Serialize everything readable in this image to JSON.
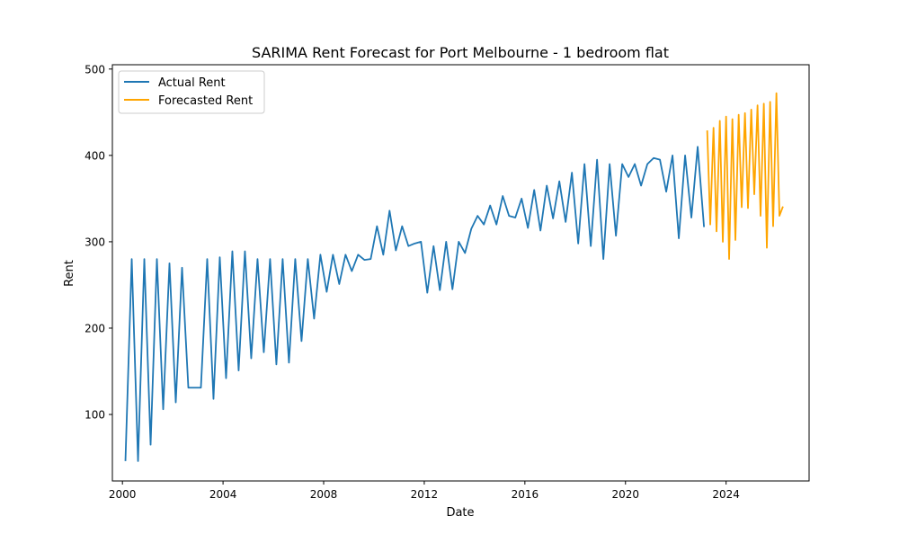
{
  "chart_data": {
    "type": "line",
    "title": "SARIMA Rent Forecast for Port Melbourne - 1 bedroom flat",
    "xlabel": "Date",
    "ylabel": "Rent",
    "xlim": [
      1999.6,
      2027.3
    ],
    "ylim": [
      23,
      505
    ],
    "x_ticks": [
      2000,
      2004,
      2008,
      2012,
      2016,
      2020,
      2024
    ],
    "y_ticks": [
      100,
      200,
      300,
      400,
      500
    ],
    "grid": false,
    "legend_position": "top-left",
    "series": [
      {
        "name": "Actual Rent",
        "color": "#1f77b4",
        "x": [
          2000.12,
          2000.37,
          2000.62,
          2000.87,
          2001.12,
          2001.37,
          2001.62,
          2001.87,
          2002.12,
          2002.37,
          2002.62,
          2002.87,
          2003.12,
          2003.37,
          2003.62,
          2003.87,
          2004.12,
          2004.37,
          2004.62,
          2004.87,
          2005.12,
          2005.37,
          2005.62,
          2005.87,
          2006.12,
          2006.37,
          2006.62,
          2006.87,
          2007.12,
          2007.37,
          2007.62,
          2007.87,
          2008.12,
          2008.37,
          2008.62,
          2008.87,
          2009.12,
          2009.37,
          2009.62,
          2009.87,
          2010.12,
          2010.37,
          2010.62,
          2010.87,
          2011.12,
          2011.37,
          2011.62,
          2011.87,
          2012.12,
          2012.37,
          2012.62,
          2012.87,
          2013.12,
          2013.37,
          2013.62,
          2013.87,
          2014.12,
          2014.37,
          2014.62,
          2014.87,
          2015.12,
          2015.37,
          2015.62,
          2015.87,
          2016.12,
          2016.37,
          2016.62,
          2016.87,
          2017.12,
          2017.37,
          2017.62,
          2017.87,
          2018.12,
          2018.37,
          2018.62,
          2018.87,
          2019.12,
          2019.37,
          2019.62,
          2019.87,
          2020.12,
          2020.37,
          2020.62,
          2020.87,
          2021.12,
          2021.37,
          2021.62,
          2021.87,
          2022.12,
          2022.37,
          2022.62,
          2022.87,
          2023.12
        ],
        "values": [
          47,
          280,
          46,
          280,
          65,
          280,
          106,
          275,
          114,
          270,
          131,
          131,
          131,
          280,
          118,
          282,
          142,
          289,
          151,
          289,
          165,
          280,
          172,
          280,
          158,
          280,
          160,
          280,
          185,
          280,
          211,
          285,
          242,
          285,
          251,
          285,
          266,
          285,
          279,
          280,
          318,
          285,
          336,
          290,
          318,
          295,
          298,
          300,
          241,
          295,
          244,
          300,
          245,
          300,
          287,
          315,
          330,
          320,
          342,
          320,
          353,
          330,
          328,
          350,
          316,
          360,
          313,
          365,
          327,
          370,
          323,
          380,
          298,
          390,
          295,
          395,
          280,
          390,
          307,
          390,
          375,
          390,
          365,
          390,
          397,
          395,
          358,
          400,
          304,
          400,
          328,
          410,
          318
        ]
      },
      {
        "name": "Forecasted Rent",
        "color": "#ffa500",
        "x": [
          2023.25,
          2023.37,
          2023.5,
          2023.62,
          2023.75,
          2023.87,
          2024.0,
          2024.12,
          2024.25,
          2024.37,
          2024.5,
          2024.62,
          2024.75,
          2024.87,
          2025.0,
          2025.12,
          2025.25,
          2025.37,
          2025.5,
          2025.62,
          2025.75,
          2025.87,
          2026.0,
          2026.12,
          2026.25
        ],
        "values": [
          428,
          320,
          432,
          312,
          440,
          300,
          445,
          280,
          442,
          302,
          447,
          340,
          449,
          339,
          453,
          355,
          458,
          330,
          460,
          293,
          462,
          318,
          472,
          330,
          340
        ]
      }
    ]
  }
}
